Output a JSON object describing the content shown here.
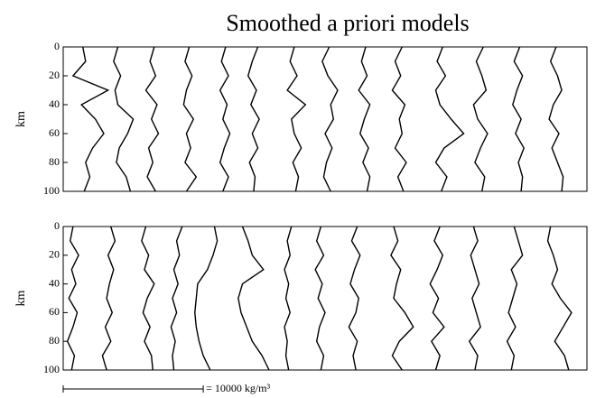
{
  "chart_data": [
    {
      "type": "line",
      "title": "Smoothed a priori models",
      "ylabel": "km",
      "color": "#000000",
      "ylim": [
        0,
        100
      ],
      "yticks": [
        0,
        20,
        40,
        60,
        80,
        100
      ],
      "xlim": [
        0,
        37400
      ],
      "depth": [
        0,
        10,
        20,
        30,
        40,
        50,
        60,
        70,
        80,
        90,
        100
      ],
      "series": [
        {
          "values": [
            1400,
            1600,
            700,
            3200,
            1300,
            2300,
            2900,
            2100,
            1600,
            1900,
            1500
          ]
        },
        {
          "values": [
            3900,
            3600,
            4100,
            3700,
            3900,
            5000,
            4600,
            4000,
            3800,
            4500,
            4800
          ]
        },
        {
          "values": [
            6500,
            6200,
            6600,
            5900,
            6700,
            6300,
            6800,
            6100,
            6400,
            6000,
            6600
          ]
        },
        {
          "values": [
            9000,
            8700,
            9200,
            8800,
            8600,
            9300,
            8800,
            9100,
            8700,
            9500,
            8800
          ]
        },
        {
          "values": [
            11600,
            11300,
            11800,
            11200,
            11700,
            11400,
            11900,
            11500,
            11200,
            11800,
            11400
          ]
        },
        {
          "values": [
            13900,
            13500,
            13200,
            13800,
            13400,
            14000,
            13500,
            13900,
            13300,
            13700,
            13600
          ]
        },
        {
          "values": [
            16500,
            16200,
            16700,
            16000,
            17300,
            16300,
            16500,
            17000,
            16400,
            16800,
            16600
          ]
        },
        {
          "values": [
            19000,
            18500,
            18900,
            19600,
            19100,
            19300,
            18700,
            19200,
            18800,
            18600,
            19100
          ]
        },
        {
          "values": [
            21600,
            21300,
            21700,
            21100,
            21900,
            21500,
            21200,
            21800,
            21400,
            21900,
            21700
          ]
        },
        {
          "values": [
            24200,
            23700,
            24100,
            23500,
            24400,
            24000,
            24200,
            23700,
            24500,
            23900,
            24300
          ]
        },
        {
          "values": [
            27100,
            26700,
            27300,
            26600,
            26900,
            27700,
            28600,
            27200,
            26600,
            27400,
            27000
          ]
        },
        {
          "values": [
            30000,
            29500,
            29900,
            30200,
            29300,
            29600,
            30300,
            29800,
            29400,
            30100,
            29900
          ]
        },
        {
          "values": [
            32600,
            32200,
            32800,
            32400,
            32100,
            32700,
            32300,
            32900,
            32500,
            32800,
            32700
          ]
        },
        {
          "values": [
            35200,
            34800,
            35300,
            35600,
            35000,
            34700,
            35400,
            34900,
            35300,
            35700,
            35600
          ]
        }
      ]
    },
    {
      "type": "line",
      "ylabel": "km",
      "color": "#000000",
      "ylim": [
        0,
        100
      ],
      "yticks": [
        0,
        20,
        40,
        60,
        80,
        100
      ],
      "xlim": [
        0,
        37400
      ],
      "depth": [
        0,
        10,
        20,
        30,
        40,
        50,
        60,
        70,
        80,
        90,
        100
      ],
      "scale_bar": {
        "value": 10000,
        "label": "= 10000 kg/m³"
      },
      "series": [
        {
          "values": [
            700,
            500,
            1100,
            600,
            900,
            400,
            1000,
            700,
            300,
            800,
            600
          ]
        },
        {
          "values": [
            3400,
            3700,
            3200,
            3600,
            3300,
            3100,
            3500,
            3000,
            3400,
            2800,
            3100
          ]
        },
        {
          "values": [
            5900,
            5600,
            6100,
            5800,
            6500,
            6000,
            5700,
            6200,
            5800,
            6300,
            6400
          ]
        },
        {
          "values": [
            8500,
            8100,
            8300,
            7900,
            8200,
            7800,
            8100,
            7700,
            8000,
            7800,
            7900
          ]
        },
        {
          "values": [
            10800,
            11000,
            10700,
            10300,
            9600,
            9500,
            9400,
            9500,
            9700,
            10000,
            10500
          ]
        },
        {
          "values": [
            12800,
            13200,
            13500,
            14300,
            12800,
            12500,
            12700,
            13100,
            13500,
            14200,
            14700
          ]
        },
        {
          "values": [
            16300,
            16000,
            16200,
            15800,
            16100,
            15900,
            16200,
            15800,
            16000,
            15900,
            16100
          ]
        },
        {
          "values": [
            18400,
            18100,
            18600,
            18000,
            18500,
            18200,
            18700,
            18300,
            18100,
            18600,
            18400
          ]
        },
        {
          "values": [
            21000,
            20600,
            21200,
            20800,
            20500,
            21100,
            20900,
            20400,
            21000,
            20700,
            20900
          ]
        },
        {
          "values": [
            23600,
            23900,
            23400,
            24100,
            23800,
            23600,
            24400,
            25000,
            24000,
            23500,
            24200
          ]
        },
        {
          "values": [
            26900,
            26500,
            27100,
            26700,
            26200,
            26800,
            26400,
            27200,
            26300,
            26900,
            26600
          ]
        },
        {
          "values": [
            29300,
            29600,
            29100,
            29400,
            29700,
            29200,
            29500,
            29800,
            29000,
            29600,
            29400
          ]
        },
        {
          "values": [
            32200,
            32500,
            32800,
            32000,
            32400,
            32100,
            31800,
            32300,
            31700,
            32200,
            32000
          ]
        },
        {
          "values": [
            34800,
            34600,
            35000,
            35300,
            34900,
            35500,
            36300,
            35700,
            35100,
            35800,
            36100
          ]
        }
      ]
    }
  ]
}
